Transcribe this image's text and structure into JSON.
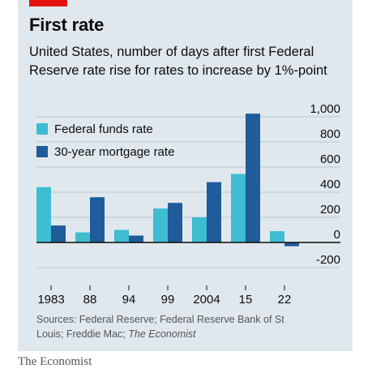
{
  "header": {
    "title": "First rate",
    "subtitle": "United States, number of days after first Federal Reserve rate rise for rates to increase by 1%-point"
  },
  "footer": {
    "source_prefix": "Sources: Federal Reserve; Federal Reserve Bank of St Louis; Freddie Mac; ",
    "source_italic": "The Economist",
    "brand": "The Economist"
  },
  "colors": {
    "panel": "#e0e8ee",
    "accent_red": "#e3120b",
    "series_light": "#3ebcd2",
    "series_dark": "#1f5c99",
    "grid": "#b7c6cf",
    "zero_line": "#0c0c0c"
  },
  "chart_data": {
    "type": "bar",
    "title": "First rate",
    "categories": [
      "1983",
      "88",
      "94",
      "99",
      "2004",
      "15",
      "22"
    ],
    "series": [
      {
        "name": "Federal funds rate",
        "values": [
          440,
          80,
          100,
          270,
          200,
          545,
          90
        ]
      },
      {
        "name": "30-year mortgage rate",
        "values": [
          135,
          360,
          55,
          315,
          480,
          1025,
          -30
        ]
      }
    ],
    "ylim": [
      -200,
      1000
    ],
    "yticks": [
      1000,
      800,
      600,
      400,
      200,
      0,
      -200
    ],
    "ytick_labels": [
      "1,000",
      "800",
      "600",
      "400",
      "200",
      "0",
      "-200"
    ],
    "grid": true,
    "legend_position": "top-left",
    "y_axis_side": "right"
  }
}
